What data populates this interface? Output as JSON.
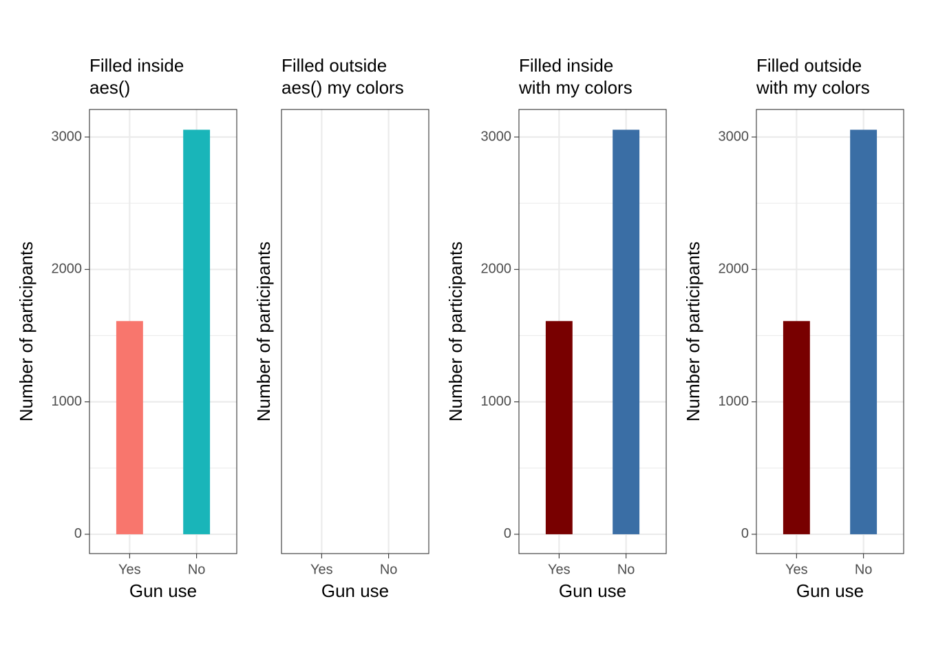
{
  "chart_data": [
    {
      "type": "bar",
      "title": [
        "Filled inside",
        "aes()"
      ],
      "x_label": "Gun use",
      "y_label": "Number of participants",
      "categories": [
        "Yes",
        "No"
      ],
      "values": [
        1610,
        3055
      ],
      "colors": [
        "#F8766D",
        "#19B5B9"
      ],
      "ylim": [
        -146,
        3208
      ],
      "yticks": [
        0,
        1000,
        2000,
        3000
      ],
      "minor_yticks": [
        500,
        1500,
        2500
      ],
      "grid": true
    },
    {
      "type": "bar",
      "title": [
        "Filled outside",
        "aes() my colors"
      ],
      "x_label": "Gun use",
      "y_label": "Number of participants",
      "categories": [
        "Yes",
        "No"
      ],
      "grid": true
    },
    {
      "type": "bar",
      "title": [
        "Filled inside",
        "with my colors"
      ],
      "x_label": "Gun use",
      "y_label": "Number of participants",
      "categories": [
        "Yes",
        "No"
      ],
      "values": [
        1610,
        3055
      ],
      "colors": [
        "#780000",
        "#3A6EA5"
      ],
      "ylim": [
        -146,
        3208
      ],
      "yticks": [
        0,
        1000,
        2000,
        3000
      ],
      "minor_yticks": [
        500,
        1500,
        2500
      ],
      "grid": true
    },
    {
      "type": "bar",
      "title": [
        "Filled outside",
        "with my colors"
      ],
      "x_label": "Gun use",
      "y_label": "Number of participants",
      "categories": [
        "Yes",
        "No"
      ],
      "values": [
        1610,
        3055
      ],
      "colors": [
        "#780000",
        "#3A6EA5"
      ],
      "ylim": [
        -146,
        3208
      ],
      "yticks": [
        0,
        1000,
        2000,
        3000
      ],
      "minor_yticks": [
        500,
        1500,
        2500
      ],
      "grid": true
    }
  ]
}
